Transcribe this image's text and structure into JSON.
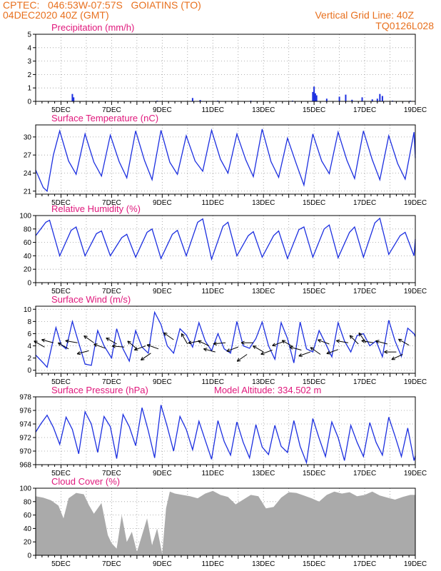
{
  "header": {
    "line1_left": "CPTEC:   046:53W-07:57S   GOIATINS (TO)",
    "line2_left": "04DEC2020 40Z (GMT)",
    "line2_right": "Vertical Grid Line: 40Z",
    "line3_right": "TQ0126L028"
  },
  "chart_data": [
    {
      "type": "bar",
      "title": "Precipitation (mm/h)",
      "ylim": [
        0,
        5
      ],
      "yticks": [
        0,
        1,
        2,
        3,
        4,
        5
      ],
      "xticks": [
        "5DEC",
        "7DEC",
        "9DEC",
        "11DEC",
        "13DEC",
        "15DEC",
        "17DEC",
        "19DEC"
      ],
      "xrange_days": [
        4.0,
        19.0
      ],
      "bar_color": "#1c2fe0",
      "bars": [
        [
          5.45,
          0.55
        ],
        [
          5.5,
          0.3
        ],
        [
          8.8,
          0.05
        ],
        [
          10.2,
          0.25
        ],
        [
          10.5,
          0.1
        ],
        [
          11.2,
          0.05
        ],
        [
          12.5,
          0.05
        ],
        [
          14.15,
          0.05
        ],
        [
          14.95,
          0.7
        ],
        [
          15.0,
          1.1
        ],
        [
          15.05,
          0.6
        ],
        [
          15.1,
          0.45
        ],
        [
          15.5,
          0.2
        ],
        [
          16.0,
          0.35
        ],
        [
          16.25,
          0.5
        ],
        [
          16.5,
          0.12
        ],
        [
          16.9,
          0.3
        ],
        [
          17.3,
          0.15
        ],
        [
          17.5,
          0.2
        ],
        [
          17.6,
          0.55
        ],
        [
          17.7,
          0.4
        ],
        [
          18.1,
          0.05
        ],
        [
          18.8,
          0.05
        ]
      ],
      "grid": true
    },
    {
      "type": "line",
      "title": "Surface Temperature (nC)",
      "ylim": [
        20.5,
        32
      ],
      "yticks": [
        21,
        24,
        27,
        30
      ],
      "xticks": [
        "5DEC",
        "7DEC",
        "9DEC",
        "11DEC",
        "13DEC",
        "15DEC",
        "17DEC",
        "19DEC"
      ],
      "xrange_days": [
        4.0,
        19.0
      ],
      "line_color": "#1c2fe0",
      "series": [
        {
          "t": [
            4.0,
            4.3,
            4.45,
            4.7,
            4.95,
            5.3,
            5.6,
            5.95,
            6.3,
            6.6,
            6.95,
            7.3,
            7.6,
            7.95,
            8.3,
            8.6,
            8.95,
            9.3,
            9.6,
            9.95,
            10.3,
            10.6,
            10.95,
            11.3,
            11.6,
            11.95,
            12.3,
            12.6,
            12.95,
            13.3,
            13.6,
            13.95,
            14.3,
            14.6,
            14.95,
            15.3,
            15.6,
            15.95,
            16.3,
            16.6,
            16.95,
            17.3,
            17.6,
            17.95,
            18.3,
            18.6,
            18.95,
            19.0
          ],
          "v": [
            24.5,
            21.6,
            21.0,
            27.0,
            31.0,
            26.0,
            23.8,
            30.5,
            25.8,
            23.5,
            30.3,
            25.9,
            23.2,
            31.0,
            26.1,
            22.9,
            31.1,
            25.8,
            23.8,
            30.2,
            26.0,
            24.3,
            31.1,
            26.3,
            24.0,
            30.5,
            26.2,
            23.4,
            31.3,
            25.9,
            23.3,
            29.8,
            25.5,
            22.0,
            30.5,
            26.0,
            23.9,
            30.8,
            26.1,
            23.1,
            31.0,
            26.2,
            22.9,
            30.2,
            25.6,
            23.0,
            30.8,
            26.5
          ]
        }
      ],
      "grid": true
    },
    {
      "type": "line",
      "title": "Relative Humidity (%)",
      "ylim": [
        0,
        100
      ],
      "yticks": [
        0,
        20,
        40,
        60,
        80,
        100
      ],
      "xticks": [
        "5DEC",
        "7DEC",
        "9DEC",
        "11DEC",
        "13DEC",
        "15DEC",
        "17DEC",
        "19DEC"
      ],
      "xrange_days": [
        4.0,
        19.0
      ],
      "line_color": "#1c2fe0",
      "series": [
        {
          "t": [
            4.0,
            4.4,
            4.55,
            4.95,
            5.4,
            5.6,
            5.95,
            6.4,
            6.6,
            6.95,
            7.4,
            7.6,
            7.95,
            8.4,
            8.6,
            8.95,
            9.4,
            9.6,
            9.95,
            10.4,
            10.6,
            10.95,
            11.4,
            11.6,
            11.95,
            12.4,
            12.6,
            12.95,
            13.4,
            13.6,
            13.95,
            14.4,
            14.6,
            14.95,
            15.4,
            15.6,
            15.95,
            16.4,
            16.6,
            16.95,
            17.4,
            17.6,
            17.95,
            18.4,
            18.6,
            18.95,
            19.0
          ],
          "v": [
            70,
            90,
            93,
            40,
            78,
            83,
            40,
            73,
            77,
            40,
            67,
            72,
            38,
            75,
            80,
            36,
            72,
            78,
            40,
            90,
            95,
            35,
            84,
            90,
            40,
            70,
            76,
            38,
            70,
            77,
            36,
            79,
            83,
            38,
            80,
            86,
            37,
            75,
            83,
            38,
            89,
            96,
            42,
            70,
            75,
            40,
            65
          ]
        }
      ],
      "grid": true
    },
    {
      "type": "line",
      "title": "Surface Wind (m/s)",
      "ylim": [
        -0.5,
        10.5
      ],
      "yticks": [
        0,
        2,
        4,
        6,
        8,
        10
      ],
      "xticks": [
        "5DEC",
        "7DEC",
        "9DEC",
        "11DEC",
        "13DEC",
        "15DEC",
        "17DEC",
        "19DEC"
      ],
      "xrange_days": [
        4.0,
        19.0
      ],
      "line_color": "#1c2fe0",
      "series": [
        {
          "t": [
            4.0,
            4.3,
            4.45,
            4.8,
            5.0,
            5.2,
            5.45,
            5.7,
            5.95,
            6.2,
            6.45,
            6.7,
            7.0,
            7.2,
            7.45,
            7.7,
            7.95,
            8.2,
            8.45,
            8.7,
            8.95,
            9.2,
            9.45,
            9.7,
            9.95,
            10.2,
            10.45,
            10.7,
            10.95,
            11.2,
            11.45,
            11.7,
            11.95,
            12.2,
            12.45,
            12.7,
            12.95,
            13.2,
            13.45,
            13.7,
            13.95,
            14.2,
            14.45,
            14.7,
            14.95,
            15.2,
            15.45,
            15.7,
            15.95,
            16.2,
            16.45,
            16.7,
            16.95,
            17.2,
            17.45,
            17.7,
            17.95,
            18.2,
            18.45,
            18.7,
            18.95,
            19.0
          ],
          "v": [
            2.5,
            1.2,
            0.5,
            7.0,
            4.2,
            3.5,
            8.0,
            4.5,
            1.0,
            0.8,
            6.5,
            4.0,
            2.0,
            6.8,
            3.5,
            1.5,
            6.5,
            3.8,
            2.8,
            9.5,
            7.5,
            4.0,
            2.8,
            6.8,
            5.8,
            3.8,
            7.8,
            4.8,
            3.2,
            6.0,
            3.5,
            2.8,
            8.0,
            4.0,
            3.6,
            5.2,
            7.9,
            4.0,
            1.8,
            7.8,
            5.2,
            1.2,
            7.9,
            3.5,
            3.0,
            6.5,
            4.4,
            2.2,
            7.8,
            4.8,
            3.0,
            5.7,
            6.0,
            4.0,
            4.8,
            2.2,
            8.2,
            4.8,
            2.3,
            6.9,
            6.0,
            5.5
          ]
        }
      ],
      "arrows": [
        [
          4.35,
          3.8,
          150
        ],
        [
          4.7,
          4.5,
          165
        ],
        [
          5.3,
          3.5,
          150
        ],
        [
          5.65,
          4.5,
          170
        ],
        [
          6.1,
          3.2,
          195
        ],
        [
          6.3,
          4.5,
          145
        ],
        [
          6.75,
          3.6,
          160
        ],
        [
          7.2,
          4.3,
          150
        ],
        [
          7.5,
          3.8,
          175
        ],
        [
          8.0,
          3.5,
          140
        ],
        [
          8.35,
          4.0,
          200
        ],
        [
          8.55,
          2.8,
          215
        ],
        [
          8.85,
          3.5,
          160
        ],
        [
          9.45,
          5.0,
          145
        ],
        [
          10.0,
          4.3,
          120
        ],
        [
          10.5,
          4.8,
          190
        ],
        [
          10.85,
          4.0,
          155
        ],
        [
          11.1,
          3.0,
          165
        ],
        [
          11.5,
          4.5,
          185
        ],
        [
          12.0,
          3.8,
          200
        ],
        [
          12.35,
          2.6,
          215
        ],
        [
          12.6,
          4.5,
          180
        ],
        [
          13.0,
          3.0,
          150
        ],
        [
          13.35,
          3.3,
          200
        ],
        [
          13.8,
          4.7,
          200
        ],
        [
          14.15,
          3.9,
          150
        ],
        [
          14.5,
          3.3,
          165
        ],
        [
          14.85,
          3.0,
          200
        ],
        [
          15.25,
          2.6,
          145
        ],
        [
          15.6,
          4.3,
          160
        ],
        [
          15.95,
          3.4,
          200
        ],
        [
          16.35,
          4.5,
          170
        ],
        [
          16.75,
          4.3,
          135
        ],
        [
          17.05,
          4.5,
          125
        ],
        [
          17.35,
          4.5,
          170
        ],
        [
          17.9,
          4.3,
          165
        ],
        [
          18.25,
          3.0,
          180
        ],
        [
          18.5,
          2.6,
          205
        ],
        [
          18.75,
          4.1,
          150
        ]
      ],
      "grid": true
    },
    {
      "type": "line",
      "title": "Surface Pressure (hPa)",
      "annotation": "Model Altitude: 334.502 m",
      "ylim": [
        968,
        978
      ],
      "yticks": [
        968,
        970,
        972,
        974,
        976,
        978
      ],
      "xticks": [
        "5DEC",
        "7DEC",
        "9DEC",
        "11DEC",
        "13DEC",
        "15DEC",
        "17DEC",
        "19DEC"
      ],
      "xrange_days": [
        4.0,
        19.0
      ],
      "line_color": "#1c2fe0",
      "series": [
        {
          "t": [
            4.0,
            4.2,
            4.45,
            4.7,
            4.95,
            5.2,
            5.45,
            5.7,
            5.95,
            6.2,
            6.45,
            6.7,
            6.95,
            7.2,
            7.45,
            7.7,
            7.95,
            8.2,
            8.45,
            8.7,
            8.95,
            9.2,
            9.45,
            9.7,
            9.95,
            10.2,
            10.45,
            10.7,
            10.95,
            11.2,
            11.45,
            11.7,
            11.95,
            12.2,
            12.45,
            12.7,
            12.95,
            13.2,
            13.45,
            13.7,
            13.95,
            14.2,
            14.45,
            14.7,
            14.95,
            15.2,
            15.45,
            15.7,
            15.95,
            16.2,
            16.45,
            16.7,
            16.95,
            17.2,
            17.45,
            17.7,
            17.95,
            18.2,
            18.45,
            18.7,
            18.95,
            19.0
          ],
          "v": [
            972.8,
            974.0,
            975.3,
            973.5,
            971.0,
            975.0,
            973.2,
            969.6,
            975.8,
            974.0,
            969.8,
            975.1,
            973.6,
            968.9,
            975.4,
            973.6,
            970.8,
            976.4,
            973.0,
            969.0,
            976.8,
            973.6,
            970.0,
            975.1,
            973.2,
            970.2,
            974.4,
            971.6,
            968.8,
            974.5,
            971.4,
            969.4,
            974.3,
            971.3,
            969.0,
            973.9,
            970.6,
            969.5,
            973.8,
            970.7,
            969.8,
            974.5,
            970.7,
            968.3,
            974.8,
            971.9,
            969.2,
            974.3,
            972.0,
            968.6,
            973.8,
            971.3,
            969.2,
            974.2,
            971.3,
            969.4,
            975.0,
            972.2,
            969.2,
            973.4,
            968.6,
            969.3
          ]
        }
      ],
      "grid": true
    },
    {
      "type": "area",
      "title": "Cloud Cover (%)",
      "ylim": [
        0,
        100
      ],
      "yticks": [
        0,
        20,
        40,
        60,
        80,
        100
      ],
      "xticks": [
        "5DEC",
        "7DEC",
        "9DEC",
        "11DEC",
        "13DEC",
        "15DEC",
        "17DEC",
        "19DEC"
      ],
      "xrange_days": [
        4.0,
        19.0
      ],
      "fill_color": "#aaaaaa",
      "series": [
        {
          "t": [
            4.0,
            4.3,
            4.6,
            4.9,
            5.1,
            5.3,
            5.6,
            5.9,
            6.1,
            6.3,
            6.6,
            6.85,
            7.0,
            7.2,
            7.4,
            7.6,
            7.8,
            8.0,
            8.2,
            8.4,
            8.6,
            8.8,
            9.0,
            9.15,
            9.3,
            9.5,
            9.8,
            10.1,
            10.4,
            10.7,
            11.0,
            11.3,
            11.6,
            11.9,
            12.2,
            12.5,
            12.8,
            13.1,
            13.4,
            13.7,
            14.0,
            14.3,
            14.6,
            14.9,
            15.2,
            15.5,
            15.8,
            16.1,
            16.4,
            16.7,
            17.0,
            17.3,
            17.6,
            17.9,
            18.2,
            18.5,
            18.8,
            19.0
          ],
          "v": [
            88,
            86,
            82,
            74,
            55,
            85,
            93,
            91,
            75,
            62,
            78,
            30,
            18,
            10,
            60,
            20,
            35,
            5,
            30,
            55,
            15,
            40,
            2,
            70,
            95,
            92,
            90,
            88,
            85,
            92,
            96,
            90,
            87,
            76,
            83,
            90,
            88,
            70,
            72,
            86,
            94,
            93,
            89,
            85,
            80,
            90,
            95,
            92,
            94,
            88,
            90,
            95,
            89,
            86,
            83,
            87,
            90,
            90
          ]
        }
      ],
      "grid": true
    }
  ]
}
